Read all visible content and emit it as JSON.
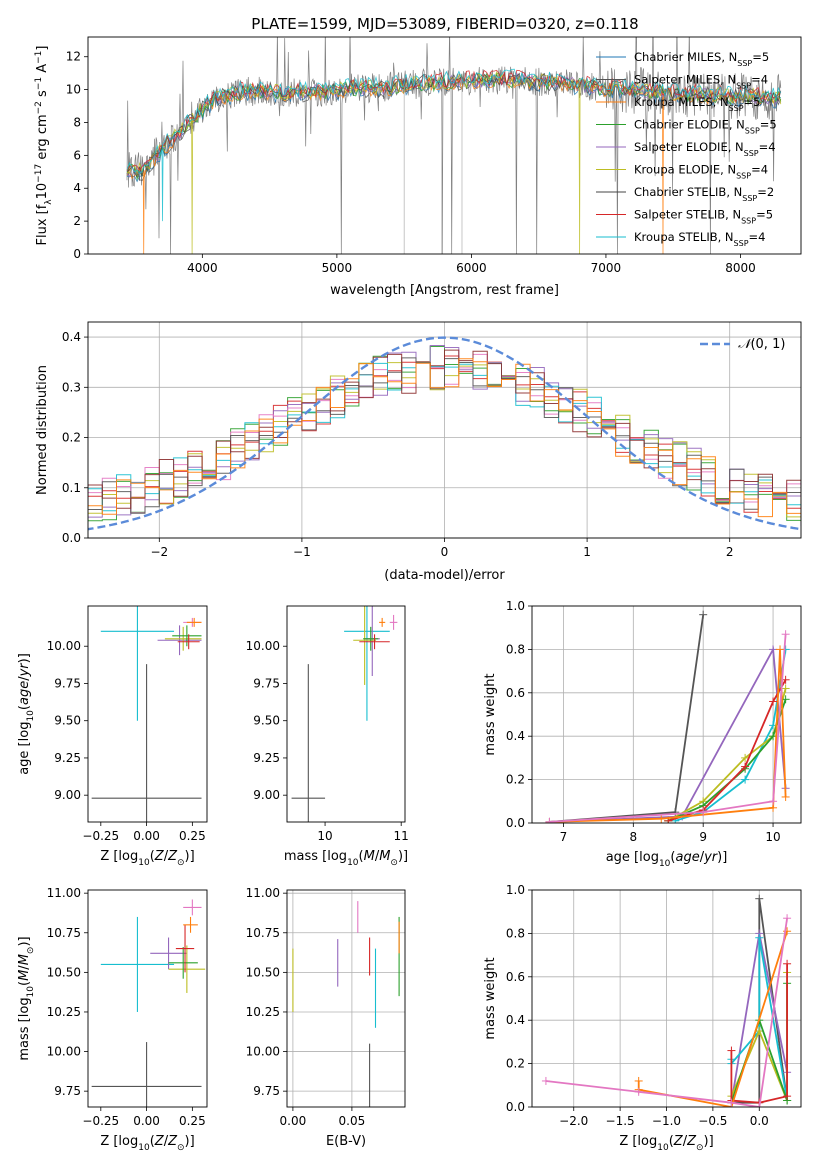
{
  "colors": {
    "grid": "#b0b0b0",
    "normal_curve": "#5b8bd9"
  },
  "chart_data": [
    {
      "id": "spectrum",
      "type": "line",
      "title": "PLATE=1599, MJD=53089, FIBERID=0320, z=0.118",
      "xlabel": "wavelength [Angstrom, rest frame]",
      "ylabel": "Flux [fλ10⁻¹⁷ erg cm⁻² s⁻¹ A⁻¹]",
      "xlim": [
        3150,
        8450
      ],
      "ylim": [
        0,
        13.2
      ],
      "xticks": [
        4000,
        5000,
        6000,
        7000,
        8000
      ],
      "yticks": [
        0,
        2,
        4,
        6,
        8,
        10,
        12
      ],
      "grid": false,
      "legend_position": "upper right",
      "data_range": [
        3440,
        8300
      ],
      "continuum": {
        "x": [
          3440,
          3550,
          3650,
          3750,
          3850,
          3950,
          4050,
          4150,
          4300,
          4500,
          4700,
          4900,
          5100,
          5300,
          5500,
          5700,
          5900,
          6100,
          6300,
          6500,
          6700,
          6900,
          7100,
          7300,
          7500,
          7700,
          7900,
          8100,
          8300
        ],
        "y": [
          5.1,
          5.0,
          5.9,
          6.8,
          7.5,
          8.4,
          9.2,
          9.6,
          9.9,
          9.9,
          9.8,
          9.9,
          10.1,
          10.1,
          10.3,
          10.4,
          10.5,
          10.6,
          10.6,
          10.5,
          10.4,
          10.2,
          10.0,
          9.9,
          9.8,
          9.7,
          9.6,
          9.6,
          9.5
        ]
      },
      "series": [
        {
          "name": "Chabrier MILES, N<sub>SSP</sub>=5",
          "color": "#1f77b4"
        },
        {
          "name": "Salpeter MILES, N<sub>SSP</sub>=4",
          "color": "#555555"
        },
        {
          "name": "Kroupa MILES, N<sub>SSP</sub>=5",
          "color": "#ff7f0e"
        },
        {
          "name": "Chabrier ELODIE, N<sub>SSP</sub>=5",
          "color": "#2ca02c"
        },
        {
          "name": "Salpeter ELODIE, N<sub>SSP</sub>=4",
          "color": "#9467bd"
        },
        {
          "name": "Kroupa ELODIE, N<sub>SSP</sub>=4",
          "color": "#bcbd22"
        },
        {
          "name": "Chabrier STELIB, N<sub>SSP</sub>=2",
          "color": "#444444"
        },
        {
          "name": "Salpeter STELIB, N<sub>SSP</sub>=5",
          "color": "#d62728"
        },
        {
          "name": "Kroupa STELIB, N<sub>SSP</sub>=4",
          "color": "#17becf"
        }
      ]
    },
    {
      "id": "residuals",
      "type": "line",
      "xlabel": "(data-model)/error",
      "ylabel": "Normed distribution",
      "xlim": [
        -2.5,
        2.5
      ],
      "ylim": [
        0,
        0.43
      ],
      "xticks": [
        -2,
        -1,
        0,
        1,
        2
      ],
      "yticks": [
        0.0,
        0.1,
        0.2,
        0.3,
        0.4
      ],
      "grid": true,
      "legend": "𝒩(0, 1)",
      "legend_position": "upper right",
      "bin_width": 0.1,
      "hist_colors": [
        "#2ca02c",
        "#d62728",
        "#9467bd",
        "#e377c2",
        "#bcbd22",
        "#17becf",
        "#555555",
        "#8c2d2d",
        "#ff7f0e"
      ]
    },
    {
      "id": "age_vs_Z",
      "type": "scatter",
      "xlabel": "Z [log₁₀(Z/Z⊙)]",
      "ylabel": "age  [log₁₀(age/yr)]",
      "xlim": [
        -0.32,
        0.33
      ],
      "ylim": [
        8.82,
        10.27
      ],
      "xticks": [
        -0.25,
        0.0,
        0.25
      ],
      "yticks": [
        9.0,
        9.25,
        9.5,
        9.75,
        10.0
      ],
      "grid": false,
      "points": [
        {
          "x": 0.0,
          "y": 8.98,
          "xerr": 0.3,
          "yerr": 0.9,
          "color": "#555555"
        },
        {
          "x": -0.05,
          "y": 10.1,
          "xerr": 0.2,
          "yerr": 0.6,
          "color": "#17becf"
        },
        {
          "x": 0.18,
          "y": 10.04,
          "xerr": 0.12,
          "yerr": 0.1,
          "color": "#9467bd"
        },
        {
          "x": 0.2,
          "y": 10.05,
          "xerr": 0.1,
          "yerr": 0.08,
          "color": "#bcbd22"
        },
        {
          "x": 0.22,
          "y": 10.07,
          "xerr": 0.08,
          "yerr": 0.07,
          "color": "#2ca02c"
        },
        {
          "x": 0.23,
          "y": 10.03,
          "xerr": 0.06,
          "yerr": 0.05,
          "color": "#d62728"
        },
        {
          "x": 0.25,
          "y": 10.16,
          "xerr": 0.05,
          "yerr": 0.03,
          "color": "#e377c2"
        },
        {
          "x": 0.26,
          "y": 10.16,
          "xerr": 0.04,
          "yerr": 0.03,
          "color": "#ff7f0e"
        }
      ]
    },
    {
      "id": "age_vs_mass",
      "type": "scatter",
      "xlabel": "mass [log₁₀(M/M⊙)]",
      "xlim": [
        9.5,
        11.05
      ],
      "ylim": [
        8.82,
        10.27
      ],
      "xticks": [
        10,
        11
      ],
      "yticks": [
        9.0,
        9.25,
        9.5,
        9.75,
        10.0
      ],
      "grid": false,
      "points": [
        {
          "x": 9.78,
          "y": 8.98,
          "xerr": 0.22,
          "yerr": 0.9,
          "color": "#555555"
        },
        {
          "x": 10.55,
          "y": 10.1,
          "xerr": 0.3,
          "yerr": 0.6,
          "color": "#17becf"
        },
        {
          "x": 10.62,
          "y": 10.05,
          "xerr": 0.1,
          "yerr": 0.25,
          "color": "#9467bd"
        },
        {
          "x": 10.52,
          "y": 10.04,
          "xerr": 0.15,
          "yerr": 0.3,
          "color": "#bcbd22"
        },
        {
          "x": 10.6,
          "y": 10.05,
          "xerr": 0.1,
          "yerr": 0.08,
          "color": "#2ca02c"
        },
        {
          "x": 10.65,
          "y": 10.03,
          "xerr": 0.2,
          "yerr": 0.05,
          "color": "#d62728"
        },
        {
          "x": 10.9,
          "y": 10.16,
          "xerr": 0.05,
          "yerr": 0.05,
          "color": "#e377c2"
        },
        {
          "x": 10.75,
          "y": 10.16,
          "xerr": 0.04,
          "yerr": 0.03,
          "color": "#ff7f0e"
        }
      ]
    },
    {
      "id": "mass_weight_vs_age",
      "type": "line",
      "xlabel": "age  [log₁₀(age/yr)]",
      "ylabel": "mass weight",
      "xlim": [
        6.55,
        10.4
      ],
      "ylim": [
        0,
        1.0
      ],
      "xticks": [
        7,
        8,
        9,
        10
      ],
      "yticks": [
        0.0,
        0.2,
        0.4,
        0.6,
        0.8,
        1.0
      ],
      "grid": true,
      "series": [
        {
          "color": "#555555",
          "x": [
            6.8,
            8.6,
            9.0
          ],
          "y": [
            0.005,
            0.05,
            0.96
          ]
        },
        {
          "color": "#9467bd",
          "x": [
            6.8,
            8.7,
            10.0,
            10.18
          ],
          "y": [
            0.005,
            0.03,
            0.8,
            0.16
          ]
        },
        {
          "color": "#17becf",
          "x": [
            8.6,
            9.0,
            9.6,
            10.0,
            10.18
          ],
          "y": [
            0.01,
            0.05,
            0.2,
            0.45,
            0.8
          ]
        },
        {
          "color": "#bcbd22",
          "x": [
            8.5,
            9.0,
            9.6,
            10.0,
            10.18
          ],
          "y": [
            0.01,
            0.1,
            0.3,
            0.4,
            0.62
          ]
        },
        {
          "color": "#2ca02c",
          "x": [
            8.5,
            9.0,
            9.6,
            10.0,
            10.18
          ],
          "y": [
            0.01,
            0.08,
            0.25,
            0.4,
            0.57
          ]
        },
        {
          "color": "#d62728",
          "x": [
            8.5,
            9.0,
            9.6,
            10.0,
            10.18
          ],
          "y": [
            0.01,
            0.06,
            0.26,
            0.56,
            0.66
          ]
        },
        {
          "color": "#ff7f0e",
          "x": [
            6.8,
            8.4,
            10.0,
            10.1,
            10.18
          ],
          "y": [
            0.005,
            0.02,
            0.07,
            0.8,
            0.12
          ]
        },
        {
          "color": "#e377c2",
          "x": [
            6.8,
            9.0,
            10.0,
            10.18
          ],
          "y": [
            0.005,
            0.05,
            0.1,
            0.87
          ]
        }
      ]
    },
    {
      "id": "mass_vs_Z",
      "type": "scatter",
      "xlabel": "Z [log₁₀(Z/Z⊙)]",
      "ylabel": "mass [log₁₀(M/M⊙)]",
      "xlim": [
        -0.32,
        0.33
      ],
      "ylim": [
        9.65,
        11.02
      ],
      "xticks": [
        -0.25,
        0.0,
        0.25
      ],
      "yticks": [
        9.75,
        10.0,
        10.25,
        10.5,
        10.75,
        11.0
      ],
      "grid": false,
      "points": [
        {
          "x": 0.0,
          "y": 9.78,
          "xerr": 0.3,
          "yerr": 0.28,
          "color": "#555555"
        },
        {
          "x": -0.05,
          "y": 10.55,
          "xerr": 0.2,
          "yerr": 0.3,
          "color": "#17becf"
        },
        {
          "x": 0.12,
          "y": 10.62,
          "xerr": 0.1,
          "yerr": 0.1,
          "color": "#9467bd"
        },
        {
          "x": 0.22,
          "y": 10.52,
          "xerr": 0.1,
          "yerr": 0.15,
          "color": "#bcbd22"
        },
        {
          "x": 0.2,
          "y": 10.56,
          "xerr": 0.08,
          "yerr": 0.1,
          "color": "#2ca02c"
        },
        {
          "x": 0.21,
          "y": 10.65,
          "xerr": 0.05,
          "yerr": 0.15,
          "color": "#d62728"
        },
        {
          "x": 0.25,
          "y": 10.91,
          "xerr": 0.05,
          "yerr": 0.05,
          "color": "#e377c2"
        },
        {
          "x": 0.24,
          "y": 10.8,
          "xerr": 0.04,
          "yerr": 0.05,
          "color": "#ff7f0e"
        }
      ]
    },
    {
      "id": "mass_vs_ebv",
      "type": "scatter",
      "xlabel": "E(B-V)",
      "xlim": [
        -0.005,
        0.095
      ],
      "ylim": [
        9.65,
        11.02
      ],
      "xticks": [
        0.0,
        0.05
      ],
      "yticks": [
        9.75,
        10.0,
        10.25,
        10.5,
        10.75,
        11.0
      ],
      "grid": true,
      "points": [
        {
          "x": 0.0,
          "y": 10.45,
          "xerr": 0,
          "yerr": 0.2,
          "color": "#bcbd22"
        },
        {
          "x": 0.038,
          "y": 10.56,
          "xerr": 0,
          "yerr": 0.15,
          "color": "#9467bd"
        },
        {
          "x": 0.055,
          "y": 10.85,
          "xerr": 0,
          "yerr": 0.1,
          "color": "#e377c2"
        },
        {
          "x": 0.065,
          "y": 9.8,
          "xerr": 0,
          "yerr": 0.25,
          "color": "#555555"
        },
        {
          "x": 0.065,
          "y": 10.6,
          "xerr": 0,
          "yerr": 0.12,
          "color": "#d62728"
        },
        {
          "x": 0.07,
          "y": 10.4,
          "xerr": 0,
          "yerr": 0.25,
          "color": "#17becf"
        },
        {
          "x": 0.09,
          "y": 10.6,
          "xerr": 0,
          "yerr": 0.25,
          "color": "#2ca02c"
        },
        {
          "x": 0.09,
          "y": 10.72,
          "xerr": 0,
          "yerr": 0.1,
          "color": "#ff7f0e"
        }
      ]
    },
    {
      "id": "mass_weight_vs_Z",
      "type": "line",
      "xlabel": "Z [log₁₀(Z/Z⊙)]",
      "ylabel": "mass weight",
      "xlim": [
        -2.45,
        0.45
      ],
      "ylim": [
        0,
        1.0
      ],
      "xticks": [
        -2.0,
        -1.5,
        -1.0,
        -0.5,
        0.0
      ],
      "yticks": [
        0.0,
        0.2,
        0.4,
        0.6,
        0.8,
        1.0
      ],
      "grid": true,
      "series": [
        {
          "color": "#555555",
          "x": [
            -0.3,
            0.0,
            0.0,
            0.3
          ],
          "y": [
            0.02,
            0.02,
            0.96,
            0.03
          ]
        },
        {
          "color": "#9467bd",
          "x": [
            -0.3,
            0.0,
            0.3
          ],
          "y": [
            0.02,
            0.8,
            0.16
          ]
        },
        {
          "color": "#17becf",
          "x": [
            -0.3,
            -0.3,
            0.0,
            0.0,
            0.3
          ],
          "y": [
            0.22,
            0.2,
            0.35,
            0.78,
            0.03
          ]
        },
        {
          "color": "#bcbd22",
          "x": [
            -0.3,
            0.0,
            0.3,
            0.3
          ],
          "y": [
            0.05,
            0.35,
            0.03,
            0.62
          ]
        },
        {
          "color": "#2ca02c",
          "x": [
            -0.3,
            0.0,
            0.3,
            0.3
          ],
          "y": [
            0.02,
            0.4,
            0.03,
            0.57
          ]
        },
        {
          "color": "#d62728",
          "x": [
            -0.3,
            -0.3,
            0.0,
            0.3,
            0.3
          ],
          "y": [
            0.26,
            0.03,
            0.02,
            0.05,
            0.66
          ]
        },
        {
          "color": "#ff7f0e",
          "x": [
            -1.3,
            -1.3,
            -0.3,
            0.3
          ],
          "y": [
            0.12,
            0.08,
            0.0,
            0.81
          ]
        },
        {
          "color": "#e377c2",
          "x": [
            -2.3,
            -1.3,
            -0.3,
            0.0,
            0.3
          ],
          "y": [
            0.12,
            0.07,
            0.02,
            0.0,
            0.87
          ]
        }
      ]
    }
  ]
}
